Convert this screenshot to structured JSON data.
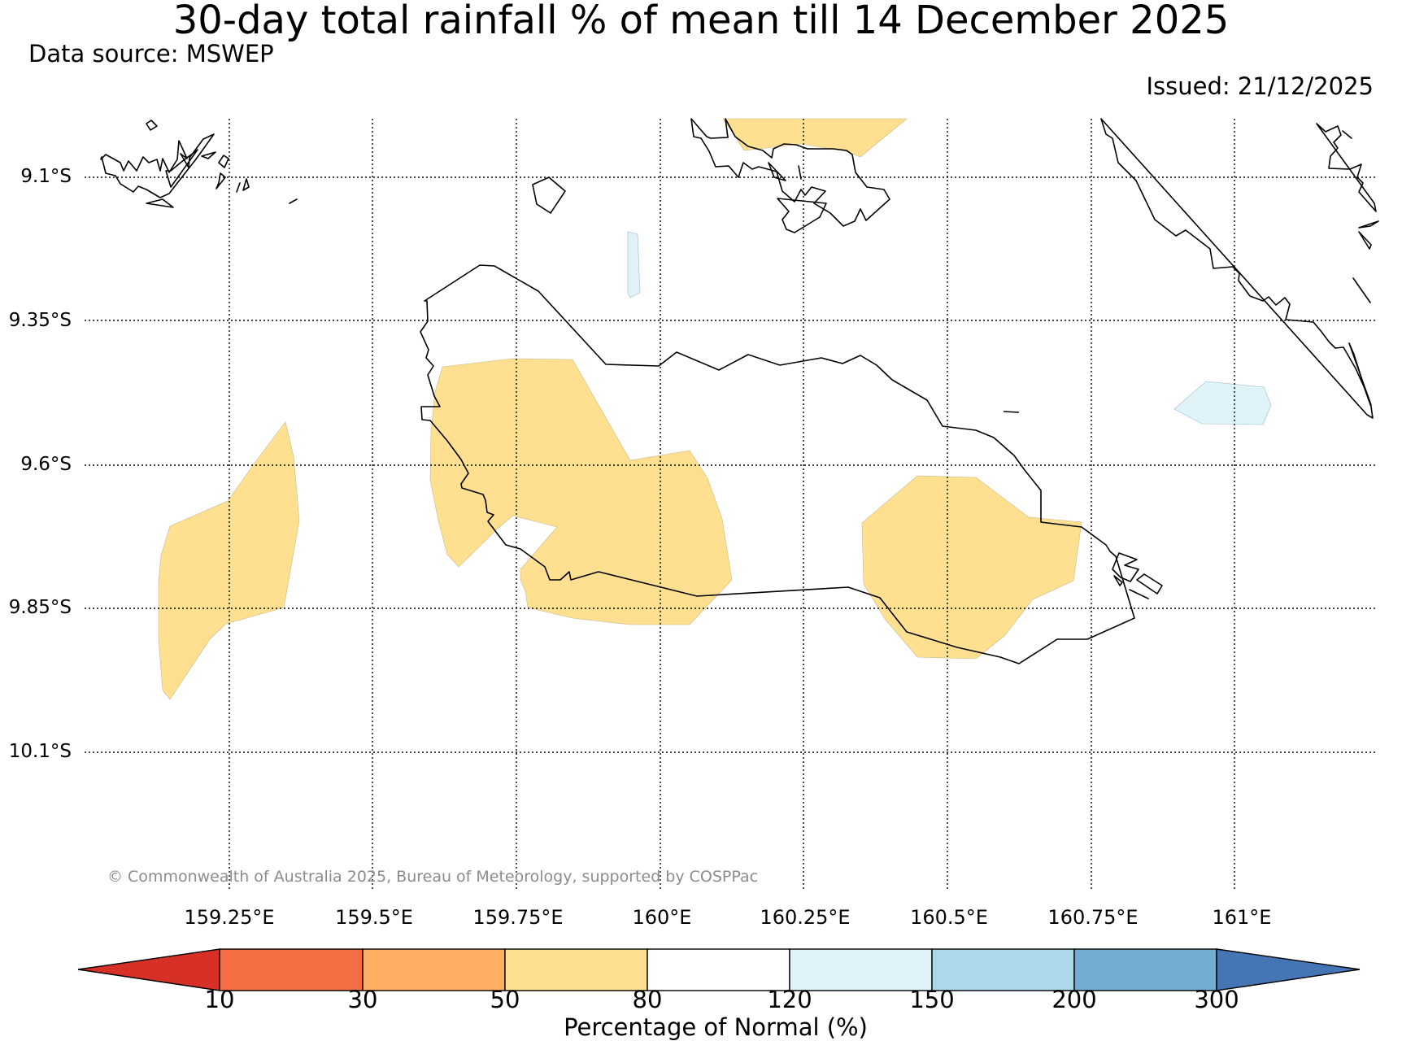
{
  "title": "30-day total rainfall % of mean till 14 December 2025",
  "source": "Data source: MSWEP",
  "issued": "Issued: 21/12/2025",
  "copyright": "© Commonwealth of Australia 2025, Bureau of Meteorology, supported by COSPPac",
  "latitude_labels": [
    "9.1°S",
    "9.35°S",
    "9.6°S",
    "9.85°S",
    "10.1°S"
  ],
  "longitude_labels": [
    "159.25°E",
    "159.5°E",
    "159.75°E",
    "160°E",
    "160.25°E",
    "160.5°E",
    "160.75°E",
    "161°E"
  ],
  "colorbar": {
    "title": "Percentage of Normal (%)",
    "ticks": [
      "10",
      "30",
      "50",
      "80",
      "120",
      "150",
      "200",
      "300"
    ],
    "colors": [
      "#d73027",
      "#f46d43",
      "#fdae61",
      "#fee090",
      "#ffffff",
      "#e0f3f8",
      "#abd9e9",
      "#74add1",
      "#4575b4"
    ]
  },
  "legend_colors": {
    "dry_fill": "#fee090",
    "wet_fill": "#e0f3f8",
    "coastline": "#000000",
    "gridline": "#000000"
  }
}
